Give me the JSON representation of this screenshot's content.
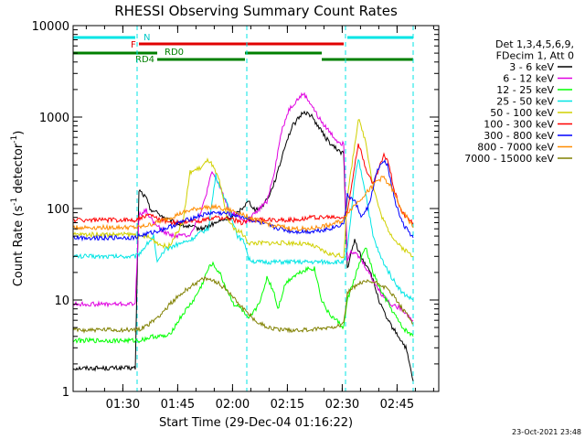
{
  "chart_data": {
    "type": "line",
    "title": "RHESSI Observing Summary Count Rates",
    "xlabel": "Start Time (29-Dec-04 01:16:22)",
    "ylabel_main": "Count Rate (s",
    "ylabel_sup1": "-1",
    "ylabel_mid": " detector",
    "ylabel_sup2": "-1",
    "ylabel_end": ")",
    "y_scale": "log",
    "ylim": [
      1,
      10000
    ],
    "xlim_minutes": [
      0,
      100
    ],
    "x_ticks": [
      {
        "label": "01:30",
        "minutes": 13.6
      },
      {
        "label": "01:45",
        "minutes": 28.6
      },
      {
        "label": "02:00",
        "minutes": 43.6
      },
      {
        "label": "02:15",
        "minutes": 58.6
      },
      {
        "label": "02:30",
        "minutes": 73.6
      },
      {
        "label": "02:45",
        "minutes": 88.6
      }
    ],
    "y_ticks": [
      {
        "label": "1",
        "value": 1
      },
      {
        "label": "10",
        "value": 10
      },
      {
        "label": "100",
        "value": 100
      },
      {
        "label": "1000",
        "value": 1000
      },
      {
        "label": "10000",
        "value": 10000
      }
    ],
    "legend": {
      "header": [
        "Det 1,3,4,5,6,9,",
        "FDecim 1, Att 0"
      ],
      "placement": "right"
    },
    "series": [
      {
        "name": "3 - 6 keV",
        "color": "#000000",
        "points": [
          [
            0,
            1.8
          ],
          [
            17,
            1.8
          ],
          [
            18,
            160
          ],
          [
            20,
            130
          ],
          [
            21,
            100
          ],
          [
            23,
            90
          ],
          [
            26,
            75
          ],
          [
            30,
            65
          ],
          [
            35,
            60
          ],
          [
            40,
            72
          ],
          [
            44,
            82
          ],
          [
            46,
            100
          ],
          [
            48,
            120
          ],
          [
            50,
            95
          ],
          [
            52,
            110
          ],
          [
            54,
            150
          ],
          [
            56,
            250
          ],
          [
            58,
            500
          ],
          [
            60,
            800
          ],
          [
            62,
            1000
          ],
          [
            63,
            1150
          ],
          [
            65,
            1050
          ],
          [
            67,
            800
          ],
          [
            69,
            600
          ],
          [
            71,
            480
          ],
          [
            73,
            420
          ],
          [
            74,
            400
          ],
          [
            75,
            22
          ],
          [
            77,
            45
          ],
          [
            79,
            28
          ],
          [
            81,
            22
          ],
          [
            84,
            9
          ],
          [
            86,
            6
          ],
          [
            89,
            4
          ],
          [
            91,
            3
          ],
          [
            93,
            1.3
          ]
        ]
      },
      {
        "name": "6 - 12 keV",
        "color": "#e000e0",
        "points": [
          [
            0,
            9
          ],
          [
            17,
            9
          ],
          [
            18,
            85
          ],
          [
            20,
            95
          ],
          [
            22,
            70
          ],
          [
            25,
            55
          ],
          [
            28,
            50
          ],
          [
            32,
            52
          ],
          [
            35,
            90
          ],
          [
            38,
            250
          ],
          [
            40,
            180
          ],
          [
            43,
            90
          ],
          [
            45,
            85
          ],
          [
            47,
            70
          ],
          [
            50,
            90
          ],
          [
            53,
            120
          ],
          [
            55,
            250
          ],
          [
            57,
            700
          ],
          [
            59,
            1200
          ],
          [
            61,
            1500
          ],
          [
            63,
            1800
          ],
          [
            65,
            1400
          ],
          [
            67,
            1000
          ],
          [
            70,
            700
          ],
          [
            72,
            560
          ],
          [
            74,
            500
          ],
          [
            75,
            28
          ],
          [
            76,
            35
          ],
          [
            78,
            30
          ],
          [
            80,
            23
          ],
          [
            84,
            12
          ],
          [
            87,
            9
          ],
          [
            90,
            8
          ],
          [
            93,
            6
          ]
        ]
      },
      {
        "name": "12 - 25 keV",
        "color": "#00ff00",
        "points": [
          [
            0,
            3.6
          ],
          [
            17,
            3.6
          ],
          [
            18,
            3.6
          ],
          [
            22,
            4
          ],
          [
            26,
            4
          ],
          [
            30,
            7
          ],
          [
            33,
            10
          ],
          [
            35,
            14
          ],
          [
            37,
            22
          ],
          [
            38,
            25
          ],
          [
            40,
            20
          ],
          [
            42,
            13
          ],
          [
            44,
            9
          ],
          [
            46,
            8
          ],
          [
            48,
            6
          ],
          [
            50,
            8
          ],
          [
            52,
            12
          ],
          [
            53,
            18
          ],
          [
            55,
            12
          ],
          [
            56,
            8
          ],
          [
            58,
            15
          ],
          [
            60,
            18
          ],
          [
            62,
            20
          ],
          [
            64,
            22
          ],
          [
            66,
            22
          ],
          [
            68,
            10
          ],
          [
            70,
            7
          ],
          [
            72,
            6
          ],
          [
            74,
            5
          ],
          [
            75,
            10
          ],
          [
            78,
            23
          ],
          [
            80,
            38
          ],
          [
            82,
            20
          ],
          [
            84,
            13
          ],
          [
            87,
            8
          ],
          [
            90,
            5
          ],
          [
            93,
            4
          ]
        ]
      },
      {
        "name": "25 - 50 keV",
        "color": "#00e5e5",
        "points": [
          [
            0,
            30
          ],
          [
            17,
            30
          ],
          [
            18,
            32
          ],
          [
            20,
            40
          ],
          [
            22,
            50
          ],
          [
            23,
            25
          ],
          [
            25,
            35
          ],
          [
            28,
            40
          ],
          [
            32,
            45
          ],
          [
            35,
            55
          ],
          [
            37,
            60
          ],
          [
            39,
            230
          ],
          [
            40,
            180
          ],
          [
            43,
            90
          ],
          [
            45,
            50
          ],
          [
            47,
            42
          ],
          [
            48,
            28
          ],
          [
            50,
            26
          ],
          [
            55,
            26
          ],
          [
            60,
            26
          ],
          [
            65,
            26
          ],
          [
            70,
            26
          ],
          [
            74,
            26
          ],
          [
            75,
            35
          ],
          [
            77,
            200
          ],
          [
            78,
            350
          ],
          [
            80,
            150
          ],
          [
            82,
            50
          ],
          [
            84,
            30
          ],
          [
            87,
            18
          ],
          [
            90,
            12
          ],
          [
            93,
            10
          ]
        ]
      },
      {
        "name": "50 - 100 keV",
        "color": "#d0d000",
        "points": [
          [
            0,
            52
          ],
          [
            17,
            52
          ],
          [
            18,
            48
          ],
          [
            20,
            50
          ],
          [
            22,
            45
          ],
          [
            24,
            40
          ],
          [
            26,
            38
          ],
          [
            30,
            70
          ],
          [
            32,
            250
          ],
          [
            35,
            280
          ],
          [
            37,
            340
          ],
          [
            38,
            300
          ],
          [
            40,
            200
          ],
          [
            42,
            80
          ],
          [
            44,
            60
          ],
          [
            46,
            55
          ],
          [
            48,
            42
          ],
          [
            52,
            42
          ],
          [
            56,
            42
          ],
          [
            60,
            42
          ],
          [
            65,
            40
          ],
          [
            70,
            32
          ],
          [
            74,
            30
          ],
          [
            75,
            130
          ],
          [
            77,
            500
          ],
          [
            78,
            950
          ],
          [
            80,
            550
          ],
          [
            82,
            180
          ],
          [
            84,
            90
          ],
          [
            86,
            60
          ],
          [
            89,
            40
          ],
          [
            93,
            30
          ]
        ]
      },
      {
        "name": "100 - 300 keV",
        "color": "#ff0000",
        "points": [
          [
            0,
            75
          ],
          [
            17,
            75
          ],
          [
            18,
            78
          ],
          [
            21,
            85
          ],
          [
            24,
            75
          ],
          [
            28,
            70
          ],
          [
            32,
            72
          ],
          [
            36,
            75
          ],
          [
            40,
            80
          ],
          [
            44,
            75
          ],
          [
            46,
            70
          ],
          [
            48,
            75
          ],
          [
            52,
            75
          ],
          [
            56,
            75
          ],
          [
            60,
            75
          ],
          [
            65,
            80
          ],
          [
            70,
            80
          ],
          [
            74,
            80
          ],
          [
            75,
            90
          ],
          [
            77,
            300
          ],
          [
            78,
            520
          ],
          [
            80,
            280
          ],
          [
            82,
            180
          ],
          [
            84,
            300
          ],
          [
            85,
            380
          ],
          [
            86,
            350
          ],
          [
            88,
            150
          ],
          [
            90,
            90
          ],
          [
            93,
            70
          ]
        ]
      },
      {
        "name": "300 - 800 keV",
        "color": "#0000ff",
        "points": [
          [
            0,
            48
          ],
          [
            17,
            48
          ],
          [
            18,
            50
          ],
          [
            22,
            55
          ],
          [
            26,
            62
          ],
          [
            30,
            72
          ],
          [
            34,
            82
          ],
          [
            38,
            90
          ],
          [
            42,
            88
          ],
          [
            46,
            82
          ],
          [
            50,
            72
          ],
          [
            55,
            62
          ],
          [
            60,
            56
          ],
          [
            65,
            56
          ],
          [
            70,
            60
          ],
          [
            74,
            68
          ],
          [
            75,
            140
          ],
          [
            77,
            120
          ],
          [
            79,
            80
          ],
          [
            81,
            110
          ],
          [
            83,
            250
          ],
          [
            85,
            330
          ],
          [
            86,
            300
          ],
          [
            88,
            120
          ],
          [
            90,
            70
          ],
          [
            93,
            48
          ]
        ]
      },
      {
        "name": "800 - 7000 keV",
        "color": "#ff8c00",
        "points": [
          [
            0,
            62
          ],
          [
            17,
            62
          ],
          [
            18,
            62
          ],
          [
            22,
            68
          ],
          [
            26,
            78
          ],
          [
            30,
            90
          ],
          [
            34,
            100
          ],
          [
            38,
            105
          ],
          [
            42,
            98
          ],
          [
            46,
            88
          ],
          [
            50,
            75
          ],
          [
            55,
            65
          ],
          [
            60,
            60
          ],
          [
            65,
            60
          ],
          [
            70,
            66
          ],
          [
            74,
            74
          ],
          [
            75,
            90
          ],
          [
            78,
            120
          ],
          [
            81,
            160
          ],
          [
            83,
            200
          ],
          [
            85,
            220
          ],
          [
            87,
            170
          ],
          [
            90,
            95
          ],
          [
            93,
            62
          ]
        ]
      },
      {
        "name": "7000 - 15000 keV",
        "color": "#808000",
        "points": [
          [
            0,
            4.7
          ],
          [
            17,
            4.7
          ],
          [
            18,
            4.8
          ],
          [
            21,
            5.5
          ],
          [
            24,
            7
          ],
          [
            27,
            9.5
          ],
          [
            30,
            12
          ],
          [
            33,
            15
          ],
          [
            36,
            17
          ],
          [
            39,
            16
          ],
          [
            42,
            13
          ],
          [
            45,
            9.5
          ],
          [
            48,
            7
          ],
          [
            51,
            5.5
          ],
          [
            55,
            4.8
          ],
          [
            60,
            4.7
          ],
          [
            65,
            4.7
          ],
          [
            70,
            5
          ],
          [
            74,
            5.5
          ],
          [
            75,
            12
          ],
          [
            78,
            15
          ],
          [
            81,
            16
          ],
          [
            84,
            15
          ],
          [
            87,
            12
          ],
          [
            90,
            8
          ],
          [
            93,
            5.5
          ]
        ]
      }
    ],
    "state_bars": [
      {
        "label": "N",
        "color": "#00e5e5",
        "segments": [
          [
            0,
            17
          ],
          [
            75,
            93
          ]
        ]
      },
      {
        "label": "F",
        "color": "#e00000",
        "segments": [
          [
            18,
            74
          ]
        ]
      },
      {
        "label": "RD0",
        "color": "#008000",
        "segments": [
          [
            0,
            23
          ],
          [
            47,
            68
          ]
        ]
      },
      {
        "label": "RD4",
        "color": "#008000",
        "segments": [
          [
            23,
            47
          ],
          [
            68,
            93
          ]
        ]
      }
    ],
    "vertical_markers": [
      0,
      17.5,
      47.5,
      74.5,
      93
    ]
  },
  "timestamp": "23-Oct-2021 23:48"
}
